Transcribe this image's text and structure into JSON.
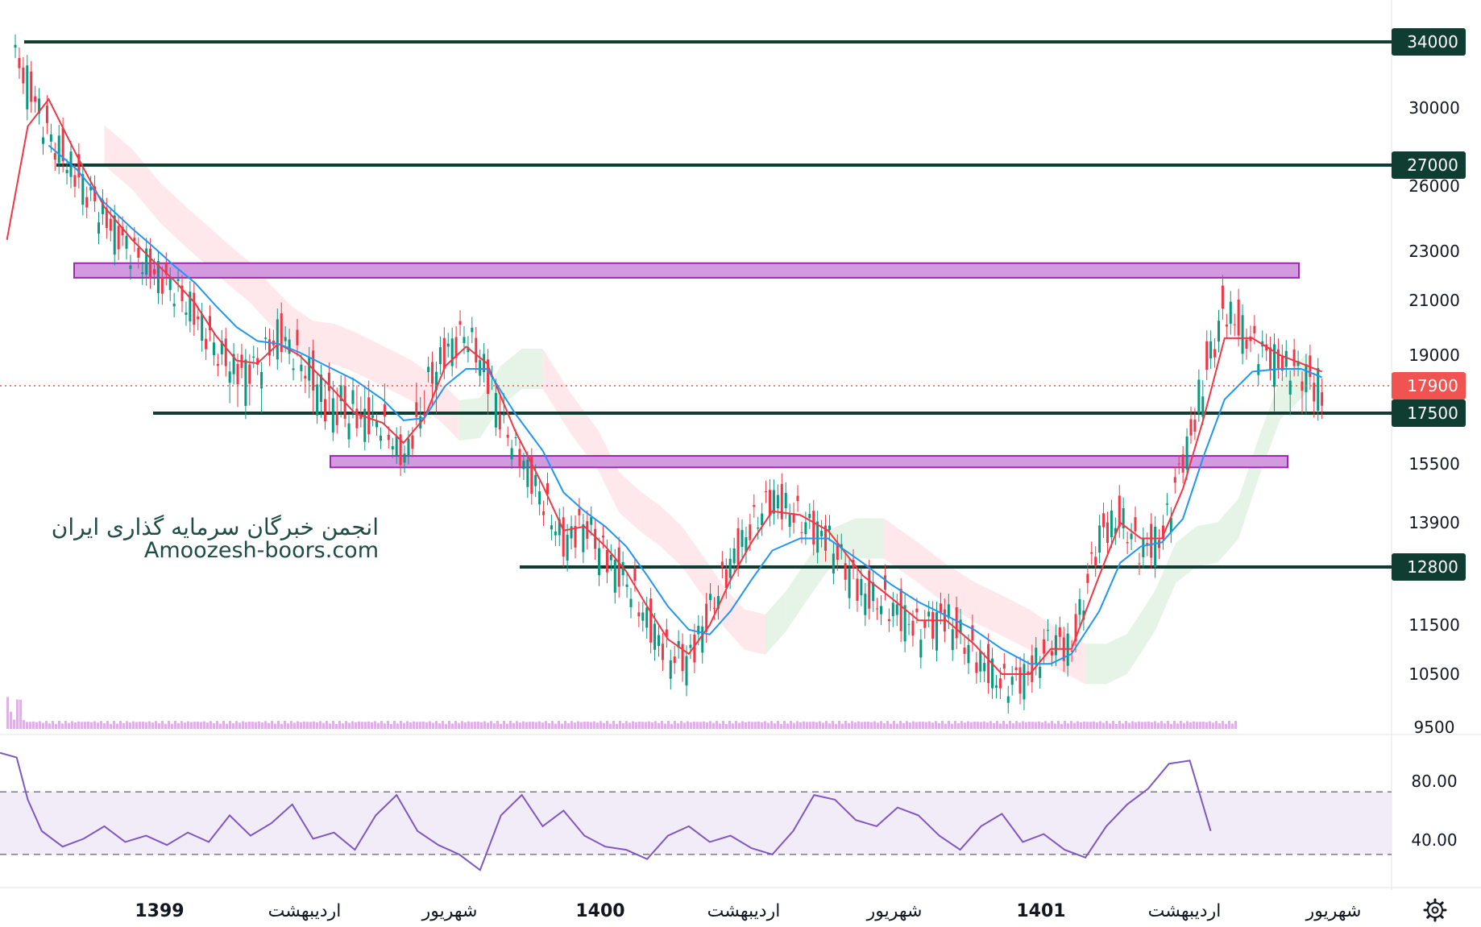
{
  "chart_data": {
    "type": "line",
    "symbol_note": "",
    "x_axis": {
      "labels": [
        "1399",
        "اردیبهشت",
        "شهریور",
        "1400",
        "اردیبهشت",
        "شهریور",
        "1401",
        "اردیبهشت",
        "شهریور"
      ],
      "years": [
        "1399",
        "1400",
        "1401"
      ]
    },
    "y_axis": {
      "scale": "log",
      "range": [
        9500,
        35500
      ],
      "ticks": [
        34000,
        30000,
        27000,
        26000,
        23000,
        21000,
        19000,
        17900,
        17500,
        15500,
        13900,
        12800,
        11500,
        10500,
        9500
      ]
    },
    "price_badges": [
      {
        "value": "34000",
        "kind": "level",
        "color": "#0f3d32"
      },
      {
        "value": "27000",
        "kind": "level",
        "color": "#0f3d32"
      },
      {
        "value": "17900",
        "kind": "last-price",
        "color": "#f05350"
      },
      {
        "value": "17500",
        "kind": "level",
        "color": "#0f3d32"
      },
      {
        "value": "12800",
        "kind": "level",
        "color": "#0f3d32"
      }
    ],
    "plain_ticks": [
      "30000",
      "26000",
      "23000",
      "21000",
      "19000",
      "15500",
      "13900",
      "11500",
      "10500",
      "9500"
    ],
    "horizontal_levels": [
      34000,
      27000,
      17500,
      12800
    ],
    "zones": [
      {
        "from": 21900,
        "to": 22500,
        "color": "#c86dd7"
      },
      {
        "from": 15400,
        "to": 15800,
        "color": "#c86dd7"
      }
    ],
    "last_price": 17900,
    "series": [
      {
        "kind": "close",
        "color": "#089981",
        "x": [
          0.005,
          0.02,
          0.035,
          0.055,
          0.075,
          0.095,
          0.11,
          0.125,
          0.14,
          0.155,
          0.17,
          0.185,
          0.2,
          0.215,
          0.235,
          0.255,
          0.275,
          0.29,
          0.305,
          0.32,
          0.335,
          0.35,
          0.37,
          0.39,
          0.405,
          0.42,
          0.435,
          0.45,
          0.465,
          0.48,
          0.495,
          0.51,
          0.525,
          0.54,
          0.555,
          0.575,
          0.595,
          0.62,
          0.64,
          0.66,
          0.68,
          0.7,
          0.72,
          0.74,
          0.755,
          0.77,
          0.79,
          0.805,
          0.82,
          0.835,
          0.85,
          0.865,
          0.88,
          0.9,
          0.92,
          0.935,
          0.95
        ],
        "y": [
          34000,
          31500,
          28500,
          26500,
          24500,
          23000,
          22200,
          21500,
          20500,
          19200,
          18400,
          18600,
          19800,
          18800,
          17600,
          17300,
          17000,
          15700,
          17800,
          19100,
          19800,
          18400,
          16100,
          14500,
          13400,
          13900,
          13100,
          12500,
          11600,
          10900,
          10800,
          11800,
          12900,
          13800,
          14600,
          14000,
          13500,
          12200,
          11900,
          11400,
          11700,
          10900,
          10300,
          10500,
          11200,
          11000,
          13600,
          14000,
          13200,
          13500,
          15700,
          18200,
          20700,
          19400,
          18700,
          18400,
          17900
        ]
      },
      {
        "kind": "ma-fast",
        "color": "#f23645",
        "x": [
          0.005,
          0.02,
          0.035,
          0.055,
          0.075,
          0.095,
          0.11,
          0.125,
          0.14,
          0.155,
          0.17,
          0.185,
          0.2,
          0.215,
          0.235,
          0.255,
          0.275,
          0.29,
          0.305,
          0.32,
          0.335,
          0.35,
          0.37,
          0.39,
          0.405,
          0.42,
          0.435,
          0.45,
          0.465,
          0.48,
          0.495,
          0.51,
          0.525,
          0.54,
          0.555,
          0.575,
          0.595,
          0.62,
          0.64,
          0.66,
          0.68,
          0.7,
          0.72,
          0.74,
          0.755,
          0.77,
          0.79,
          0.805,
          0.82,
          0.835,
          0.85,
          0.865,
          0.88,
          0.9,
          0.92,
          0.935,
          0.95
        ],
        "y": [
          23500,
          29000,
          30500,
          27500,
          25000,
          23500,
          22600,
          21800,
          20900,
          19700,
          18800,
          18700,
          19400,
          19000,
          18000,
          17500,
          17100,
          16300,
          17300,
          18600,
          19300,
          18700,
          16800,
          14900,
          13700,
          13800,
          13300,
          12700,
          11900,
          11200,
          10900,
          11500,
          12500,
          13400,
          14200,
          14100,
          13700,
          12600,
          12100,
          11600,
          11600,
          11100,
          10500,
          10500,
          11000,
          11000,
          12600,
          13900,
          13500,
          13500,
          14800,
          17300,
          19600,
          19600,
          19000,
          18700,
          18400
        ]
      },
      {
        "kind": "ma-slow",
        "color": "#2196f3",
        "x": [
          0.035,
          0.055,
          0.075,
          0.095,
          0.11,
          0.125,
          0.14,
          0.155,
          0.17,
          0.185,
          0.2,
          0.215,
          0.235,
          0.255,
          0.275,
          0.29,
          0.305,
          0.32,
          0.335,
          0.35,
          0.37,
          0.39,
          0.405,
          0.42,
          0.435,
          0.45,
          0.465,
          0.48,
          0.495,
          0.51,
          0.525,
          0.54,
          0.555,
          0.575,
          0.595,
          0.62,
          0.64,
          0.66,
          0.68,
          0.7,
          0.72,
          0.74,
          0.755,
          0.77,
          0.79,
          0.805,
          0.82,
          0.835,
          0.85,
          0.865,
          0.88,
          0.9,
          0.92,
          0.935,
          0.95
        ],
        "y": [
          28000,
          26800,
          25200,
          24000,
          23200,
          22400,
          21700,
          20800,
          20000,
          19500,
          19400,
          19100,
          18600,
          18100,
          17700,
          17200,
          17300,
          17900,
          18500,
          18500,
          17500,
          16000,
          14700,
          14200,
          13800,
          13300,
          12600,
          11900,
          11400,
          11300,
          11800,
          12500,
          13200,
          13500,
          13500,
          12900,
          12400,
          12000,
          11700,
          11400,
          11000,
          10700,
          10700,
          10900,
          11800,
          12900,
          13300,
          13400,
          14000,
          15800,
          17700,
          18400,
          18500,
          18500,
          18200
        ]
      }
    ],
    "rsi": {
      "ticks": [
        "80.00",
        "40.00"
      ],
      "upper": 70,
      "lower": 30,
      "range": [
        15,
        100
      ],
      "color": "#7e57c2",
      "x": [
        0.0,
        0.012,
        0.02,
        0.03,
        0.045,
        0.06,
        0.075,
        0.09,
        0.105,
        0.12,
        0.135,
        0.15,
        0.165,
        0.18,
        0.195,
        0.21,
        0.225,
        0.24,
        0.255,
        0.27,
        0.285,
        0.3,
        0.315,
        0.33,
        0.345,
        0.36,
        0.375,
        0.39,
        0.405,
        0.42,
        0.435,
        0.45,
        0.465,
        0.48,
        0.495,
        0.51,
        0.525,
        0.54,
        0.555,
        0.57,
        0.585,
        0.6,
        0.615,
        0.63,
        0.645,
        0.66,
        0.675,
        0.69,
        0.705,
        0.72,
        0.735,
        0.75,
        0.765,
        0.78,
        0.795,
        0.81,
        0.825,
        0.84,
        0.855,
        0.87
      ],
      "y": [
        95,
        92,
        65,
        45,
        35,
        40,
        48,
        38,
        42,
        36,
        44,
        38,
        55,
        42,
        50,
        62,
        40,
        44,
        33,
        55,
        68,
        45,
        36,
        30,
        20,
        55,
        68,
        48,
        58,
        42,
        35,
        33,
        27,
        42,
        48,
        38,
        42,
        34,
        30,
        45,
        68,
        65,
        52,
        48,
        60,
        55,
        42,
        33,
        48,
        56,
        38,
        43,
        33,
        28,
        48,
        62,
        72,
        88,
        90,
        45
      ]
    }
  },
  "watermark": {
    "line1": "انجمن خبرگان سرمایه گذاری ایران",
    "line2": "Amoozesh-boors.com"
  },
  "toolbar": {
    "settings_icon": "gear-icon"
  },
  "colors": {
    "level": "#0f3d32",
    "zone_fill": "#d39ae0",
    "zone_stroke": "#9c27b0",
    "last_price": "#f05350",
    "ma_fast": "#f23645",
    "ma_slow": "#2196f3",
    "candle_up": "#089981",
    "candle_down": "#f23645",
    "rsi": "#7e57c2",
    "rsi_band": "#ede7f6"
  }
}
